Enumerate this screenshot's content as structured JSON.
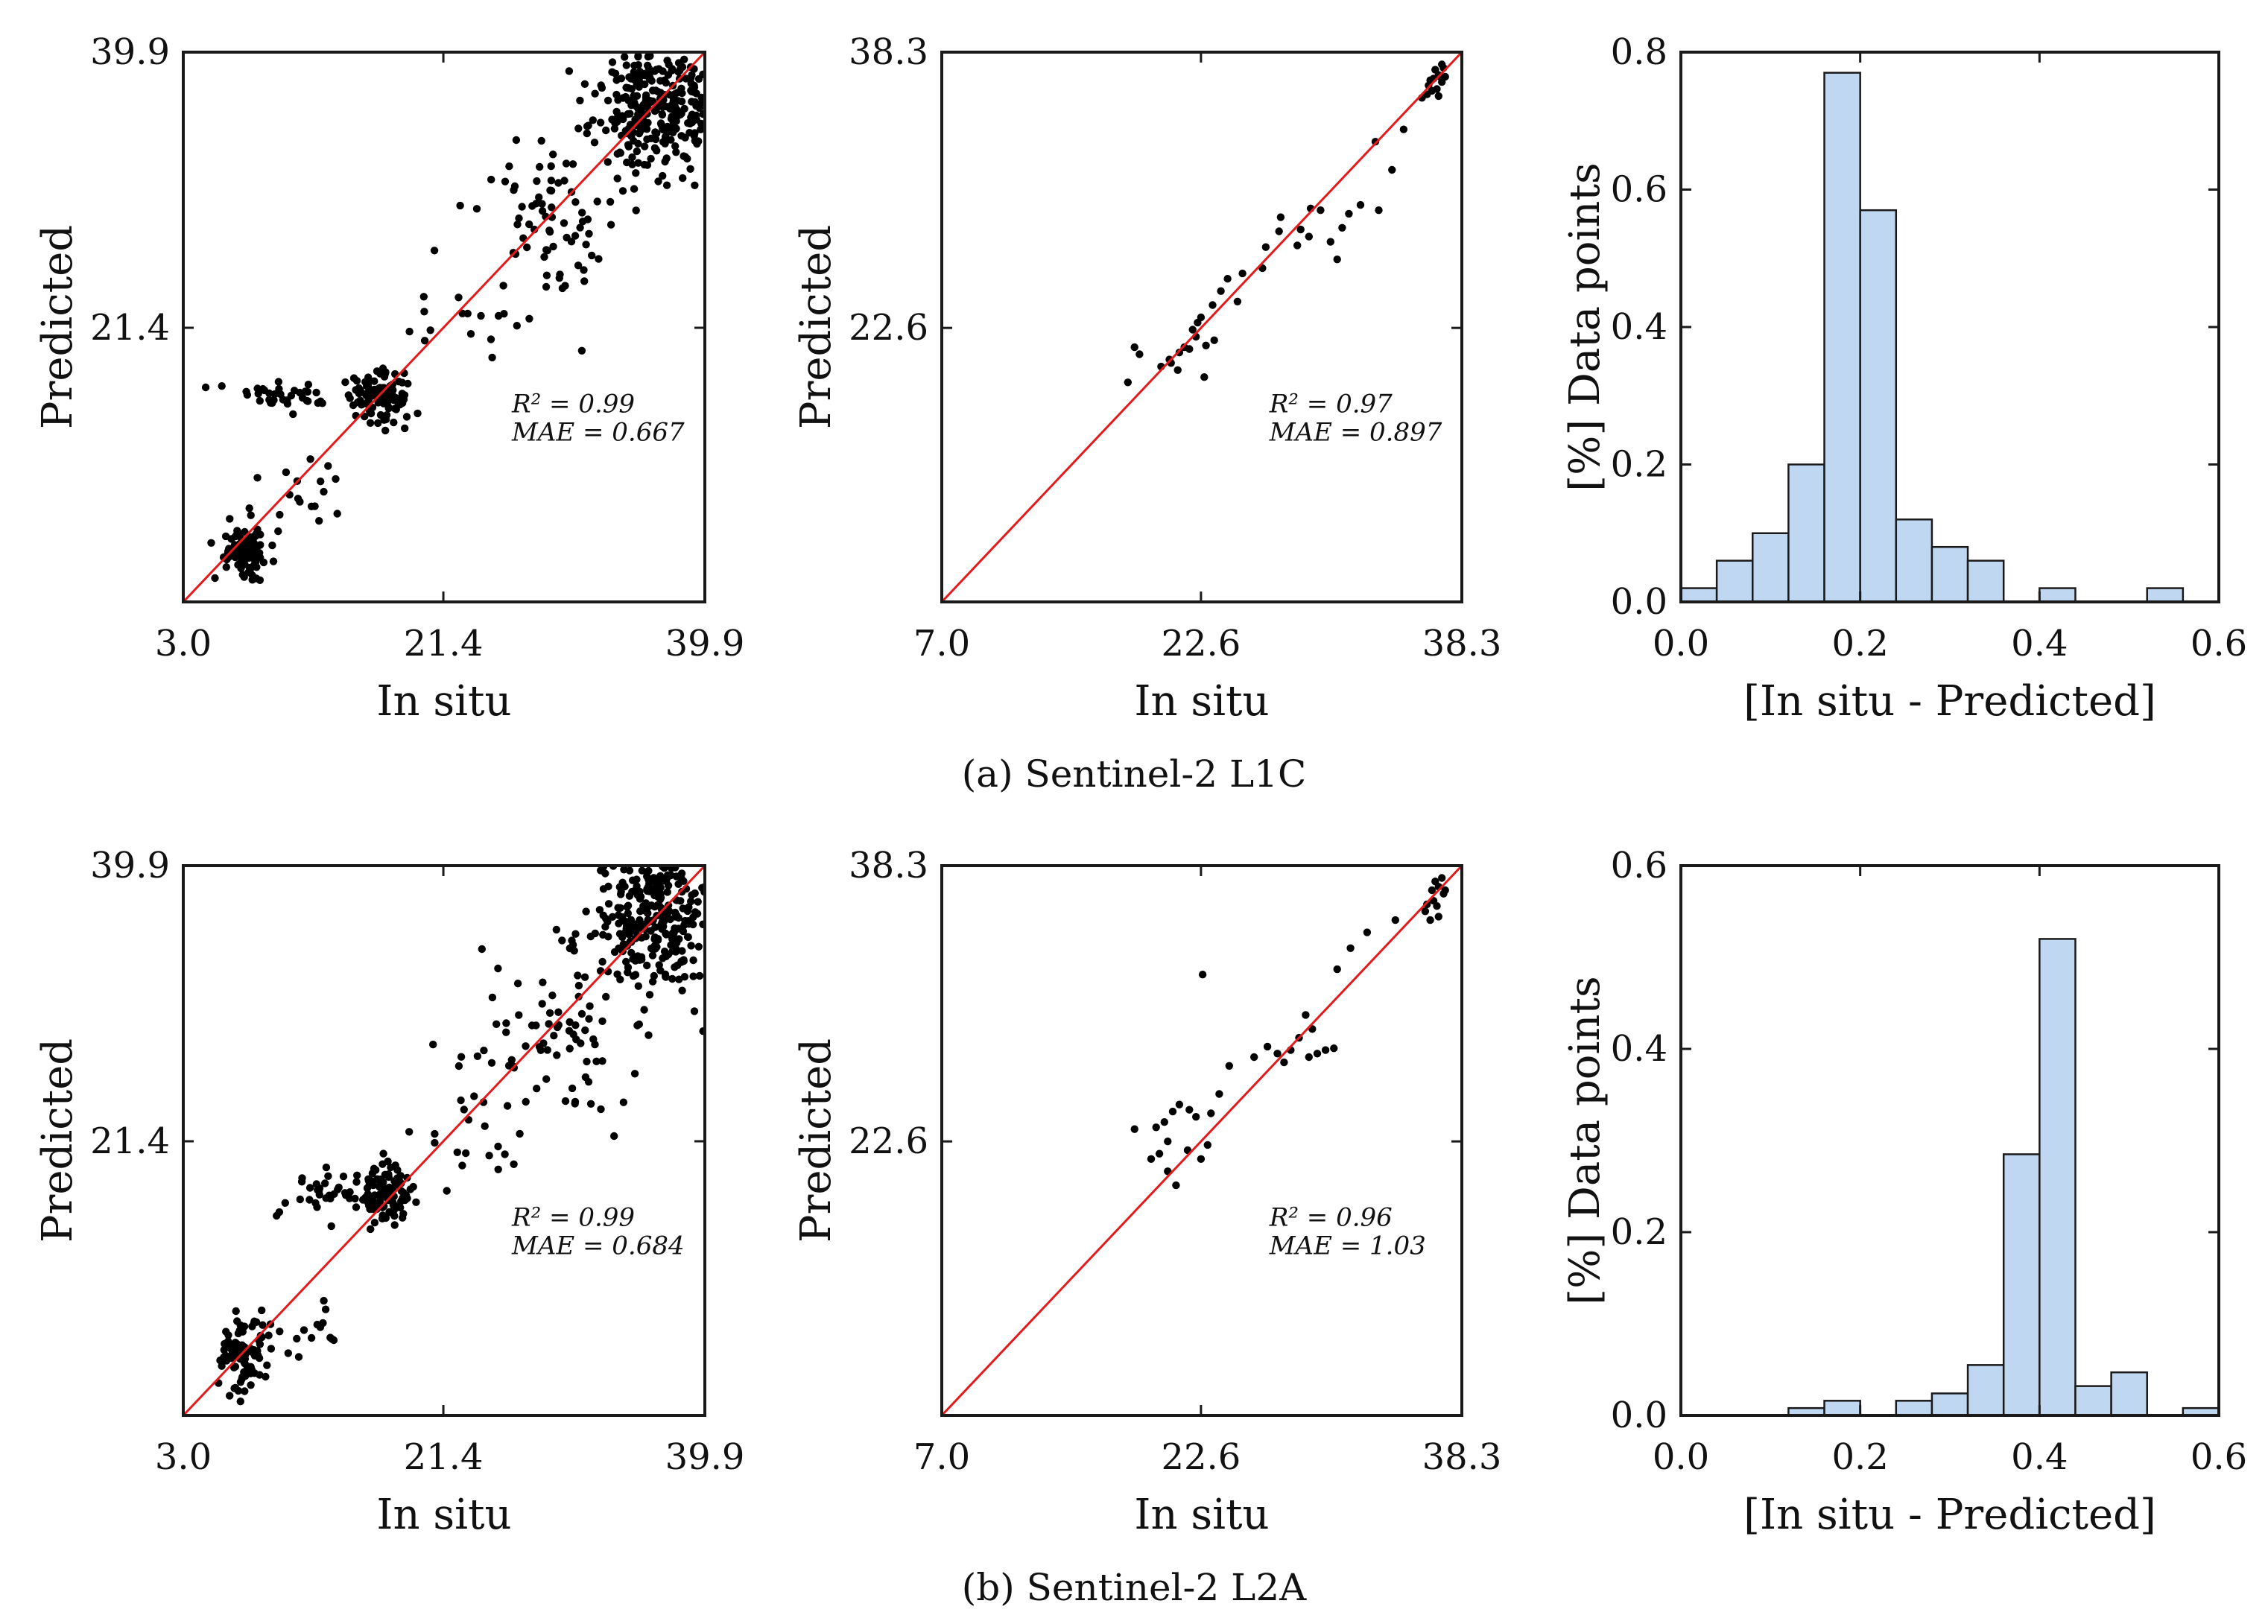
{
  "colors": {
    "point": "#000000",
    "line": "#e41a1c",
    "bar_fill": "#bfd7f0",
    "bar_edge": "#1a1a1a",
    "axes": "#1a1a1a"
  },
  "captions": {
    "row_a": "(a) Sentinel-2 L1C",
    "row_b": "(b) Sentinel-2 L2A"
  },
  "chart_data": [
    {
      "id": "a1",
      "row": 0,
      "col": 0,
      "type": "scatter",
      "xlabel": "In situ",
      "ylabel": "Predicted",
      "xlim": [
        3.0,
        39.9
      ],
      "ylim": [
        3.0,
        39.9
      ],
      "xticks": [
        "3.0",
        "21.4",
        "39.9"
      ],
      "yticks": [
        "39.9",
        "21.4"
      ],
      "annotation": {
        "line1": "R² = 0.99",
        "line2": "MAE = 0.667"
      },
      "identity_line": true,
      "clusters": [
        {
          "cx": 36.5,
          "cy": 36.5,
          "sx": 2.2,
          "sy": 2.4,
          "n": 320,
          "seed": 11
        },
        {
          "cx": 29.5,
          "cy": 28.5,
          "sx": 2.6,
          "sy": 2.8,
          "n": 70,
          "seed": 12
        },
        {
          "cx": 17.0,
          "cy": 16.8,
          "sx": 1.1,
          "sy": 0.9,
          "n": 110,
          "seed": 13
        },
        {
          "cx": 11.0,
          "cy": 16.9,
          "sx": 2.2,
          "sy": 0.4,
          "n": 35,
          "seed": 14
        },
        {
          "cx": 7.5,
          "cy": 6.5,
          "sx": 0.8,
          "sy": 0.9,
          "n": 90,
          "seed": 15
        },
        {
          "cx": 11.5,
          "cy": 10.0,
          "sx": 1.8,
          "sy": 1.4,
          "n": 18,
          "seed": 16
        },
        {
          "cx": 23.5,
          "cy": 23.0,
          "sx": 2.5,
          "sy": 2.2,
          "n": 18,
          "seed": 17
        }
      ]
    },
    {
      "id": "a2",
      "row": 0,
      "col": 1,
      "type": "scatter",
      "xlabel": "In situ",
      "ylabel": "Predicted",
      "xlim": [
        7.0,
        38.3
      ],
      "ylim": [
        7.0,
        38.3
      ],
      "xticks": [
        "7.0",
        "22.6",
        "38.3"
      ],
      "yticks": [
        "38.3",
        "22.6"
      ],
      "annotation": {
        "line1": "R² = 0.97",
        "line2": "MAE = 0.897"
      },
      "identity_line": true,
      "points": [
        [
          18.6,
          21.5
        ],
        [
          18.9,
          21.1
        ],
        [
          18.2,
          19.5
        ],
        [
          20.2,
          20.4
        ],
        [
          20.8,
          20.6
        ],
        [
          21.3,
          21.2
        ],
        [
          21.6,
          21.5
        ],
        [
          22.1,
          22.5
        ],
        [
          22.4,
          22.9
        ],
        [
          22.6,
          23.2
        ],
        [
          22.3,
          22.1
        ],
        [
          20.7,
          20.8
        ],
        [
          21.9,
          21.4
        ],
        [
          23.8,
          24.7
        ],
        [
          23.3,
          23.9
        ],
        [
          24.2,
          25.4
        ],
        [
          25.1,
          25.7
        ],
        [
          26.5,
          27.2
        ],
        [
          27.3,
          28.1
        ],
        [
          26.3,
          26.0
        ],
        [
          28.6,
          28.2
        ],
        [
          29.1,
          27.8
        ],
        [
          28.4,
          27.3
        ],
        [
          29.8,
          29.3
        ],
        [
          30.4,
          27.5
        ],
        [
          31.1,
          28.3
        ],
        [
          30.8,
          26.5
        ],
        [
          31.5,
          29.1
        ],
        [
          32.2,
          29.6
        ],
        [
          33.3,
          29.3
        ],
        [
          34.1,
          31.6
        ],
        [
          33.1,
          33.2
        ],
        [
          34.8,
          33.9
        ],
        [
          22.9,
          21.6
        ],
        [
          21.2,
          20.2
        ],
        [
          23.4,
          21.9
        ],
        [
          27.4,
          28.9
        ],
        [
          24.8,
          24.1
        ],
        [
          22.8,
          19.8
        ],
        [
          29.2,
          29.4
        ],
        [
          36.3,
          36.4
        ],
        [
          36.6,
          36.8
        ],
        [
          36.9,
          37.0
        ],
        [
          37.1,
          36.6
        ],
        [
          36.5,
          36.1
        ],
        [
          37.2,
          37.4
        ],
        [
          36.8,
          36.2
        ],
        [
          37.0,
          36.9
        ],
        [
          36.4,
          36.7
        ],
        [
          37.3,
          36.9
        ],
        [
          36.7,
          37.3
        ],
        [
          36.2,
          35.9
        ],
        [
          37.1,
          37.6
        ],
        [
          36.9,
          35.8
        ],
        [
          35.9,
          35.7
        ]
      ]
    },
    {
      "id": "a3",
      "row": 0,
      "col": 2,
      "type": "histogram",
      "xlabel": "[In situ - Predicted]",
      "ylabel": "[%] Data points",
      "xlim": [
        0.0,
        0.6
      ],
      "ylim": [
        0.0,
        0.8
      ],
      "xticks": [
        "0.0",
        "0.2",
        "0.4",
        "0.6"
      ],
      "yticks": [
        "0.0",
        "0.2",
        "0.4",
        "0.6",
        "0.8"
      ],
      "bin_edges": [
        0.0,
        0.04,
        0.08,
        0.12,
        0.16,
        0.2,
        0.24,
        0.28,
        0.32,
        0.36,
        0.4,
        0.44,
        0.48,
        0.52,
        0.56
      ],
      "values": [
        0.02,
        0.06,
        0.1,
        0.2,
        0.77,
        0.57,
        0.12,
        0.08,
        0.06,
        0.0,
        0.02,
        0.0,
        0.0,
        0.02
      ]
    },
    {
      "id": "b1",
      "row": 1,
      "col": 0,
      "type": "scatter",
      "xlabel": "In situ",
      "ylabel": "Predicted",
      "xlim": [
        3.0,
        39.9
      ],
      "ylim": [
        3.0,
        39.9
      ],
      "xticks": [
        "3.0",
        "21.4",
        "39.9"
      ],
      "yticks": [
        "39.9",
        "21.4"
      ],
      "annotation": {
        "line1": "R² = 0.99",
        "line2": "MAE = 0.684"
      },
      "identity_line": true,
      "clusters": [
        {
          "cx": 36.5,
          "cy": 36.5,
          "sx": 2.3,
          "sy": 2.5,
          "n": 320,
          "seed": 21
        },
        {
          "cx": 29.0,
          "cy": 28.8,
          "sx": 2.8,
          "sy": 2.6,
          "n": 75,
          "seed": 22
        },
        {
          "cx": 17.2,
          "cy": 17.8,
          "sx": 0.9,
          "sy": 0.9,
          "n": 100,
          "seed": 23
        },
        {
          "cx": 12.5,
          "cy": 17.8,
          "sx": 1.8,
          "sy": 0.9,
          "n": 35,
          "seed": 24
        },
        {
          "cx": 7.5,
          "cy": 7.0,
          "sx": 0.9,
          "sy": 1.1,
          "n": 90,
          "seed": 25
        },
        {
          "cx": 12.0,
          "cy": 9.5,
          "sx": 2.0,
          "sy": 1.3,
          "n": 14,
          "seed": 26
        },
        {
          "cx": 23.0,
          "cy": 22.8,
          "sx": 2.6,
          "sy": 2.8,
          "n": 22,
          "seed": 27
        }
      ]
    },
    {
      "id": "b2",
      "row": 1,
      "col": 1,
      "type": "scatter",
      "xlabel": "In situ",
      "ylabel": "Predicted",
      "xlim": [
        7.0,
        38.3
      ],
      "ylim": [
        7.0,
        38.3
      ],
      "xticks": [
        "7.0",
        "22.6",
        "38.3"
      ],
      "yticks": [
        "38.3",
        "22.6"
      ],
      "annotation": {
        "line1": "R² = 0.96",
        "line2": "MAE = 1.03"
      },
      "identity_line": true,
      "points": [
        [
          18.6,
          23.3
        ],
        [
          19.9,
          23.4
        ],
        [
          20.4,
          23.7
        ],
        [
          20.9,
          24.3
        ],
        [
          21.3,
          24.7
        ],
        [
          21.9,
          24.4
        ],
        [
          22.3,
          24.0
        ],
        [
          23.2,
          24.2
        ],
        [
          19.6,
          21.6
        ],
        [
          20.1,
          21.9
        ],
        [
          20.6,
          20.9
        ],
        [
          21.1,
          20.1
        ],
        [
          21.8,
          22.1
        ],
        [
          22.6,
          21.6
        ],
        [
          23.0,
          22.4
        ],
        [
          23.7,
          25.3
        ],
        [
          24.3,
          26.9
        ],
        [
          25.8,
          27.4
        ],
        [
          26.6,
          28.0
        ],
        [
          27.2,
          27.6
        ],
        [
          27.6,
          27.1
        ],
        [
          28.0,
          27.8
        ],
        [
          28.5,
          28.5
        ],
        [
          28.9,
          29.8
        ],
        [
          29.1,
          27.4
        ],
        [
          29.6,
          27.6
        ],
        [
          30.1,
          27.8
        ],
        [
          30.6,
          27.9
        ],
        [
          29.3,
          29.0
        ],
        [
          30.8,
          32.4
        ],
        [
          31.6,
          33.6
        ],
        [
          32.6,
          34.5
        ],
        [
          34.3,
          35.2
        ],
        [
          22.7,
          32.1
        ],
        [
          20.6,
          22.6
        ],
        [
          36.2,
          36.1
        ],
        [
          36.5,
          36.9
        ],
        [
          36.9,
          37.1
        ],
        [
          37.2,
          36.7
        ],
        [
          36.6,
          36.3
        ],
        [
          37.1,
          37.6
        ],
        [
          36.8,
          36.0
        ],
        [
          36.4,
          35.2
        ],
        [
          36.9,
          35.4
        ],
        [
          37.3,
          36.9
        ],
        [
          36.1,
          35.7
        ],
        [
          36.7,
          37.4
        ]
      ]
    },
    {
      "id": "b3",
      "row": 1,
      "col": 2,
      "type": "histogram",
      "xlabel": "[In situ - Predicted]",
      "ylabel": "[%] Data points",
      "xlim": [
        0.0,
        0.6
      ],
      "ylim": [
        0.0,
        0.6
      ],
      "xticks": [
        "0.0",
        "0.2",
        "0.4",
        "0.6"
      ],
      "yticks": [
        "0.0",
        "0.2",
        "0.4",
        "0.6"
      ],
      "bin_edges": [
        0.12,
        0.16,
        0.2,
        0.24,
        0.28,
        0.32,
        0.36,
        0.4,
        0.44,
        0.48,
        0.52,
        0.56,
        0.6
      ],
      "values": [
        0.008,
        0.016,
        0.0,
        0.016,
        0.024,
        0.055,
        0.285,
        0.52,
        0.032,
        0.047,
        0.0,
        0.008
      ]
    }
  ]
}
